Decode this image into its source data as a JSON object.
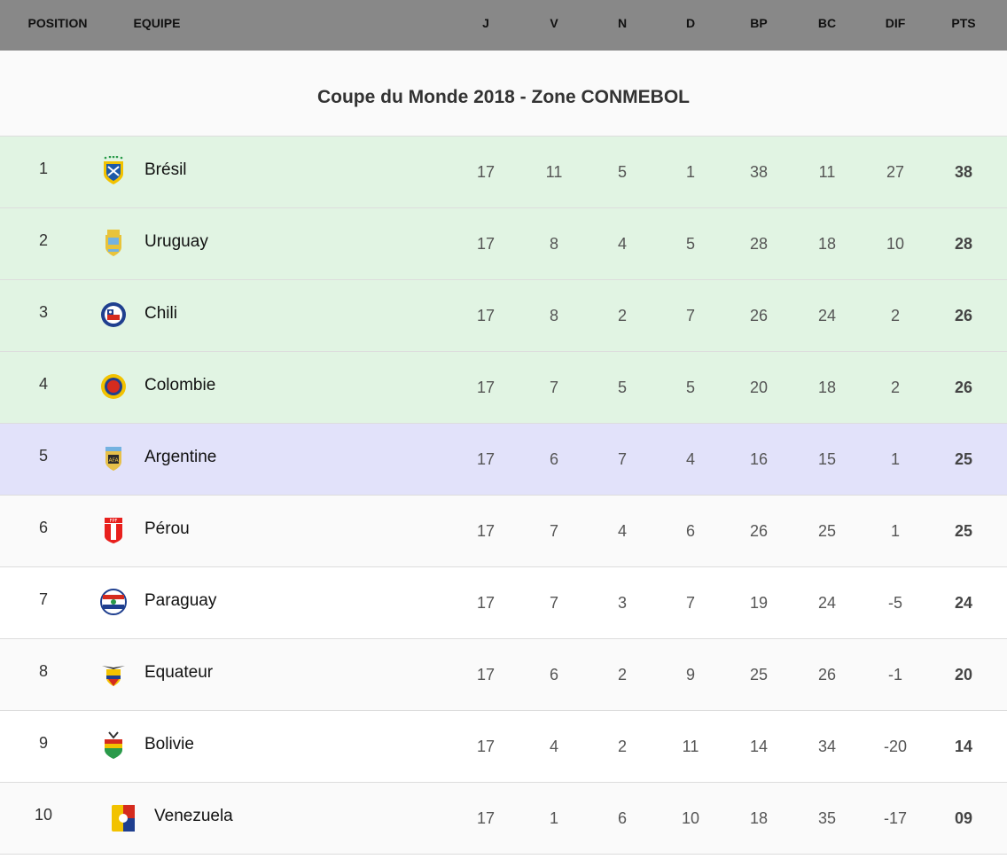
{
  "header": {
    "columns": [
      "POSITION",
      "EQUIPE",
      "J",
      "V",
      "N",
      "D",
      "BP",
      "BC",
      "DIF",
      "PTS"
    ]
  },
  "title": "Coupe du Monde 2018 - Zone CONMEBOL",
  "colors": {
    "header_bg": "#888888",
    "qualified": "#e1f4e3",
    "playoff": "#e2e2fa",
    "odd": "#fafafa",
    "even": "#ffffff"
  },
  "rows": [
    {
      "pos": "1",
      "team": "Brésil",
      "crest": "brazil-crest",
      "J": "17",
      "V": "11",
      "N": "5",
      "D": "1",
      "BP": "38",
      "BC": "11",
      "DIF": "27",
      "PTS": "38",
      "zone": "qualified"
    },
    {
      "pos": "2",
      "team": "Uruguay",
      "crest": "uruguay-crest",
      "J": "17",
      "V": "8",
      "N": "4",
      "D": "5",
      "BP": "28",
      "BC": "18",
      "DIF": "10",
      "PTS": "28",
      "zone": "qualified"
    },
    {
      "pos": "3",
      "team": "Chili",
      "crest": "chile-crest",
      "J": "17",
      "V": "8",
      "N": "2",
      "D": "7",
      "BP": "26",
      "BC": "24",
      "DIF": "2",
      "PTS": "26",
      "zone": "qualified"
    },
    {
      "pos": "4",
      "team": "Colombie",
      "crest": "colombia-crest",
      "J": "17",
      "V": "7",
      "N": "5",
      "D": "5",
      "BP": "20",
      "BC": "18",
      "DIF": "2",
      "PTS": "26",
      "zone": "qualified"
    },
    {
      "pos": "5",
      "team": "Argentine",
      "crest": "argentina-crest",
      "J": "17",
      "V": "6",
      "N": "7",
      "D": "4",
      "BP": "16",
      "BC": "15",
      "DIF": "1",
      "PTS": "25",
      "zone": "playoff"
    },
    {
      "pos": "6",
      "team": "Pérou",
      "crest": "peru-crest",
      "J": "17",
      "V": "7",
      "N": "4",
      "D": "6",
      "BP": "26",
      "BC": "25",
      "DIF": "1",
      "PTS": "25",
      "zone": "odd"
    },
    {
      "pos": "7",
      "team": "Paraguay",
      "crest": "paraguay-crest",
      "J": "17",
      "V": "7",
      "N": "3",
      "D": "7",
      "BP": "19",
      "BC": "24",
      "DIF": "-5",
      "PTS": "24",
      "zone": "even"
    },
    {
      "pos": "8",
      "team": "Equateur",
      "crest": "ecuador-crest",
      "J": "17",
      "V": "6",
      "N": "2",
      "D": "9",
      "BP": "25",
      "BC": "26",
      "DIF": "-1",
      "PTS": "20",
      "zone": "odd"
    },
    {
      "pos": "9",
      "team": "Bolivie",
      "crest": "bolivia-crest",
      "J": "17",
      "V": "4",
      "N": "2",
      "D": "11",
      "BP": "14",
      "BC": "34",
      "DIF": "-20",
      "PTS": "14",
      "zone": "even"
    },
    {
      "pos": "10",
      "team": "Venezuela",
      "crest": "venezuela-crest",
      "J": "17",
      "V": "1",
      "N": "6",
      "D": "10",
      "BP": "18",
      "BC": "35",
      "DIF": "-17",
      "PTS": "09",
      "zone": "odd"
    }
  ]
}
